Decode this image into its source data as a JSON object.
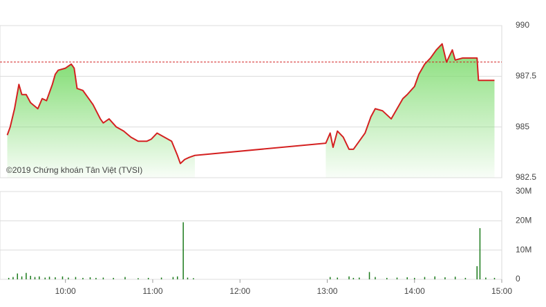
{
  "chart_data": [
    {
      "type": "line",
      "annotation": "©2019 Chứng khoán Tân Việt (TVSI)",
      "x": [
        "09:20",
        "09:22",
        "09:25",
        "09:28",
        "09:30",
        "09:33",
        "09:36",
        "09:41",
        "09:44",
        "09:47",
        "09:51",
        "09:53",
        "09:55",
        "10:00",
        "10:04",
        "10:06",
        "10:08",
        "10:12",
        "10:16",
        "10:19",
        "10:24",
        "10:26",
        "10:30",
        "10:35",
        "10:40",
        "10:45",
        "10:50",
        "10:56",
        "10:59",
        "11:03",
        "11:08",
        "11:13",
        "11:17",
        "11:19",
        "11:22",
        "11:25",
        "11:29",
        "12:59",
        "13:02",
        "13:04",
        "13:07",
        "13:11",
        "13:15",
        "13:18",
        "13:22",
        "13:26",
        "13:30",
        "13:33",
        "13:38",
        "13:44",
        "13:48",
        "13:52",
        "13:55",
        "14:00",
        "14:03",
        "14:07",
        "14:11",
        "14:15",
        "14:19",
        "14:22",
        "14:26",
        "14:28",
        "14:33",
        "14:43",
        "14:44",
        "14:55"
      ],
      "series": [
        {
          "color": "#d42020",
          "values": [
            984.6,
            985.0,
            985.9,
            987.1,
            986.6,
            986.6,
            986.2,
            985.9,
            986.4,
            986.3,
            987.1,
            987.6,
            987.8,
            987.9,
            988.1,
            987.9,
            986.9,
            986.8,
            986.4,
            986.1,
            985.4,
            985.2,
            985.4,
            985.0,
            984.8,
            984.5,
            984.3,
            984.3,
            984.4,
            984.7,
            984.5,
            984.3,
            983.6,
            983.2,
            983.4,
            983.5,
            983.6,
            984.2,
            984.7,
            984.0,
            984.8,
            984.5,
            983.9,
            983.9,
            984.3,
            984.7,
            985.5,
            985.9,
            985.8,
            985.4,
            985.9,
            986.4,
            986.6,
            987.0,
            987.6,
            988.1,
            988.4,
            988.8,
            989.1,
            988.2,
            988.8,
            988.3,
            988.4,
            988.4,
            987.3,
            987.3
          ]
        }
      ],
      "fill_color": "#7fdc70",
      "reference_line": 988.2,
      "reference_color": "#d42020",
      "xlim": [
        "09:15",
        "15:00"
      ],
      "ylim": [
        982.5,
        990
      ],
      "yticks": [
        990,
        987.5,
        985,
        982.5
      ],
      "grid": true
    },
    {
      "type": "bar",
      "x": [
        "09:21",
        "09:24",
        "09:27",
        "09:30",
        "09:33",
        "09:36",
        "09:39",
        "09:42",
        "09:46",
        "09:49",
        "09:53",
        "09:58",
        "10:02",
        "10:07",
        "10:12",
        "10:17",
        "10:21",
        "10:26",
        "10:33",
        "10:41",
        "10:50",
        "10:57",
        "11:06",
        "11:14",
        "11:17",
        "11:21",
        "11:24",
        "11:28",
        "13:02",
        "13:07",
        "13:15",
        "13:18",
        "13:22",
        "13:29",
        "13:33",
        "13:41",
        "13:48",
        "13:55",
        "14:00",
        "14:07",
        "14:14",
        "14:21",
        "14:28",
        "14:35",
        "14:43",
        "14:45",
        "14:49",
        "14:55"
      ],
      "values": [
        500000,
        800000,
        2000000,
        1000000,
        2200000,
        1200000,
        800000,
        1000000,
        600000,
        900000,
        700000,
        1000000,
        600000,
        800000,
        500000,
        700000,
        500000,
        600000,
        500000,
        800000,
        400000,
        500000,
        600000,
        800000,
        1000000,
        19500000,
        600000,
        400000,
        800000,
        600000,
        1000000,
        500000,
        600000,
        2500000,
        800000,
        500000,
        600000,
        700000,
        500000,
        800000,
        1000000,
        700000,
        900000,
        500000,
        4500000,
        17500000,
        600000,
        500000
      ],
      "color": "#1a7a1a",
      "xlim": [
        "09:15",
        "15:00"
      ],
      "xticks": [
        "10:00",
        "11:00",
        "12:00",
        "13:00",
        "14:00",
        "15:00"
      ],
      "ylim": [
        0,
        30000000
      ],
      "yticks": [
        {
          "value": 30000000,
          "label": "30M"
        },
        {
          "value": 20000000,
          "label": "20M"
        },
        {
          "value": 10000000,
          "label": "10M"
        },
        0
      ],
      "grid": true
    }
  ]
}
